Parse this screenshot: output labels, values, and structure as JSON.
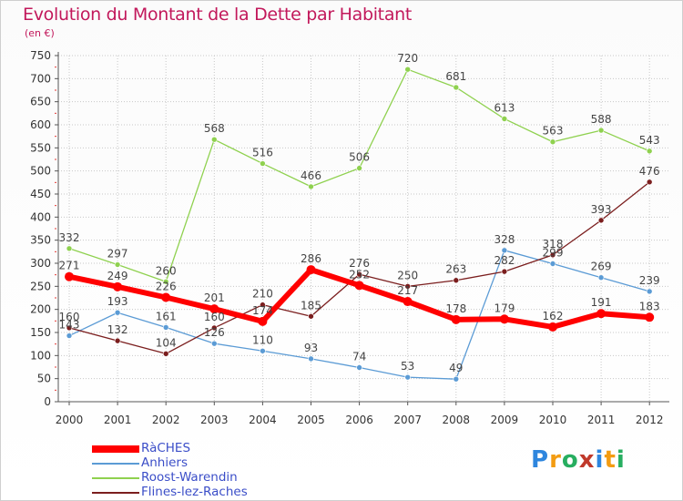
{
  "title": "Evolution du Montant de la Dette par Habitant",
  "unit": "(en €)",
  "logo": {
    "text": "Proxiti",
    "letters": [
      {
        "ch": "P",
        "color": "#2e86de"
      },
      {
        "ch": "r",
        "color": "#f39c12"
      },
      {
        "ch": "o",
        "color": "#27ae60"
      },
      {
        "ch": "x",
        "color": "#c0392b"
      },
      {
        "ch": "i",
        "color": "#2e86de"
      },
      {
        "ch": "t",
        "color": "#f39c12"
      },
      {
        "ch": "i",
        "color": "#27ae60"
      }
    ]
  },
  "chart_data": {
    "type": "line",
    "title": "Evolution du Montant de la Dette par Habitant",
    "ylabel": "(en €)",
    "xlabel": "",
    "x": [
      "2000",
      "2001",
      "2002",
      "2003",
      "2004",
      "2005",
      "2006",
      "2007",
      "2008",
      "2009",
      "2010",
      "2011",
      "2012"
    ],
    "ylim": [
      0,
      750
    ],
    "yticks": [
      0,
      50,
      100,
      150,
      200,
      250,
      300,
      350,
      400,
      450,
      500,
      550,
      600,
      650,
      700,
      750
    ],
    "grid": true,
    "legend": "bottom-left",
    "series": [
      {
        "name": "RàCHES",
        "color": "#ff0000",
        "width": 6,
        "marker": 5,
        "values": [
          271,
          249,
          226,
          201,
          174,
          286,
          252,
          217,
          178,
          179,
          162,
          191,
          183
        ]
      },
      {
        "name": "Anhiers",
        "color": "#5b9bd5",
        "width": 1.3,
        "marker": 3,
        "values": [
          143,
          193,
          161,
          126,
          110,
          93,
          74,
          53,
          49,
          328,
          299,
          269,
          239
        ]
      },
      {
        "name": "Roost-Warendin",
        "color": "#8fd14f",
        "width": 1.3,
        "marker": 3,
        "values": [
          332,
          297,
          260,
          568,
          516,
          466,
          506,
          720,
          681,
          613,
          563,
          588,
          543
        ]
      },
      {
        "name": "Flines-lez-Raches",
        "color": "#7b1e1e",
        "width": 1.3,
        "marker": 3,
        "values": [
          160,
          132,
          104,
          160,
          210,
          185,
          276,
          250,
          263,
          282,
          318,
          393,
          476
        ]
      }
    ]
  }
}
